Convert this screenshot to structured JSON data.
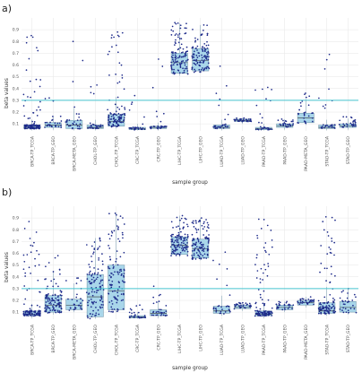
{
  "colors": {
    "box_fill": "#a9d6ea",
    "box_stroke": "#6a8fa3",
    "point": "#1d2a8a",
    "threshold": "#46c3cf",
    "grid": "#e6e6e6"
  },
  "chart_data": [
    {
      "type": "box",
      "panel_label": "a)",
      "title": "",
      "xlabel": "sample group",
      "ylabel": "beta values",
      "ylim": [
        0.04,
        1.0
      ],
      "yticks": [
        "0.1",
        "0.2",
        "0.3",
        "0.4",
        "0.5",
        "0.6",
        "0.7",
        "0.8",
        "0.9"
      ],
      "threshold": 0.3,
      "grid": true,
      "categories": [
        "BRCA-TP_TCGA",
        "BRCA-TP_GEO",
        "BRCA-META_GEO",
        "CHOL-TP_GEO",
        "CHOL-TP_TCGA",
        "CRC-TP_TCGA",
        "CRC-TP_GEO",
        "LIHC-TP_TCGA",
        "LIHC-TP_GEO",
        "LUAD-TP_TCGA",
        "LUAD-TP_GEO",
        "PAAD-TP_TCGA",
        "PAAD-TP_GEO",
        "PAAD-META_GEO",
        "STAD-TP_TCGA",
        "STAD-TP_GEO"
      ],
      "boxes": [
        {
          "q1": 0.06,
          "median": 0.07,
          "q3": 0.09,
          "max": 0.85
        },
        {
          "q1": 0.07,
          "median": 0.09,
          "q3": 0.11,
          "max": 0.32
        },
        {
          "q1": 0.06,
          "median": 0.09,
          "q3": 0.13,
          "max": 0.8
        },
        {
          "q1": 0.06,
          "median": 0.07,
          "q3": 0.09,
          "max": 0.43
        },
        {
          "q1": 0.08,
          "median": 0.12,
          "q3": 0.18,
          "max": 0.88
        },
        {
          "q1": 0.05,
          "median": 0.06,
          "q3": 0.07,
          "max": 0.34
        },
        {
          "q1": 0.06,
          "median": 0.07,
          "q3": 0.08,
          "max": 0.65
        },
        {
          "q1": 0.53,
          "median": 0.62,
          "q3": 0.7,
          "max": 0.96
        },
        {
          "q1": 0.55,
          "median": 0.64,
          "q3": 0.74,
          "max": 0.94
        },
        {
          "q1": 0.06,
          "median": 0.07,
          "q3": 0.09,
          "max": 0.59
        },
        {
          "q1": 0.12,
          "median": 0.13,
          "q3": 0.14,
          "max": 0.15
        },
        {
          "q1": 0.05,
          "median": 0.06,
          "q3": 0.07,
          "max": 0.41
        },
        {
          "q1": 0.07,
          "median": 0.08,
          "q3": 0.1,
          "max": 0.14
        },
        {
          "q1": 0.11,
          "median": 0.15,
          "q3": 0.19,
          "max": 0.36
        },
        {
          "q1": 0.06,
          "median": 0.07,
          "q3": 0.09,
          "max": 0.69
        },
        {
          "q1": 0.07,
          "median": 0.08,
          "q3": 0.1,
          "max": 0.16
        }
      ]
    },
    {
      "type": "box",
      "panel_label": "b)",
      "title": "",
      "xlabel": "sample group",
      "ylabel": "beta values",
      "ylim": [
        0.04,
        1.0
      ],
      "yticks": [
        "0.1",
        "0.2",
        "0.3",
        "0.4",
        "0.5",
        "0.6",
        "0.7",
        "0.8",
        "0.9"
      ],
      "threshold": 0.3,
      "grid": true,
      "categories": [
        "BRCA-TP_TCGA",
        "BRCA-TP_GEO",
        "BRCA-META_GEO",
        "CHOL-TP_GEO",
        "CHOL-TP_TCGA",
        "CRC-TP_TCGA",
        "CRC-TP_GEO",
        "LIHC-TP_TCGA",
        "LIHC-TP_GEO",
        "LUAD-TP_TCGA",
        "LUAD-TP_GEO",
        "PAAD-TP_TCGA",
        "PAAD-TP_GEO",
        "PAAD-META_GEO",
        "STAD-TP_TCGA",
        "STAD-TP_GEO"
      ],
      "boxes": [
        {
          "q1": 0.07,
          "median": 0.08,
          "q3": 0.11,
          "max": 0.87
        },
        {
          "q1": 0.1,
          "median": 0.16,
          "q3": 0.24,
          "max": 0.58
        },
        {
          "q1": 0.12,
          "median": 0.16,
          "q3": 0.21,
          "max": 0.39
        },
        {
          "q1": 0.06,
          "median": 0.23,
          "q3": 0.42,
          "max": 0.73
        },
        {
          "q1": 0.12,
          "median": 0.28,
          "q3": 0.5,
          "max": 0.94
        },
        {
          "q1": 0.05,
          "median": 0.06,
          "q3": 0.07,
          "max": 0.16
        },
        {
          "q1": 0.07,
          "median": 0.09,
          "q3": 0.12,
          "max": 0.32
        },
        {
          "q1": 0.59,
          "median": 0.67,
          "q3": 0.74,
          "max": 0.92
        },
        {
          "q1": 0.56,
          "median": 0.64,
          "q3": 0.72,
          "max": 0.9
        },
        {
          "q1": 0.09,
          "median": 0.11,
          "q3": 0.15,
          "max": 0.61
        },
        {
          "q1": 0.13,
          "median": 0.14,
          "q3": 0.16,
          "max": 0.18
        },
        {
          "q1": 0.07,
          "median": 0.08,
          "q3": 0.11,
          "max": 0.89
        },
        {
          "q1": 0.12,
          "median": 0.14,
          "q3": 0.16,
          "max": 0.19
        },
        {
          "q1": 0.16,
          "median": 0.18,
          "q3": 0.2,
          "max": 0.23
        },
        {
          "q1": 0.09,
          "median": 0.11,
          "q3": 0.18,
          "max": 0.91
        },
        {
          "q1": 0.1,
          "median": 0.14,
          "q3": 0.19,
          "max": 0.3
        }
      ]
    }
  ]
}
